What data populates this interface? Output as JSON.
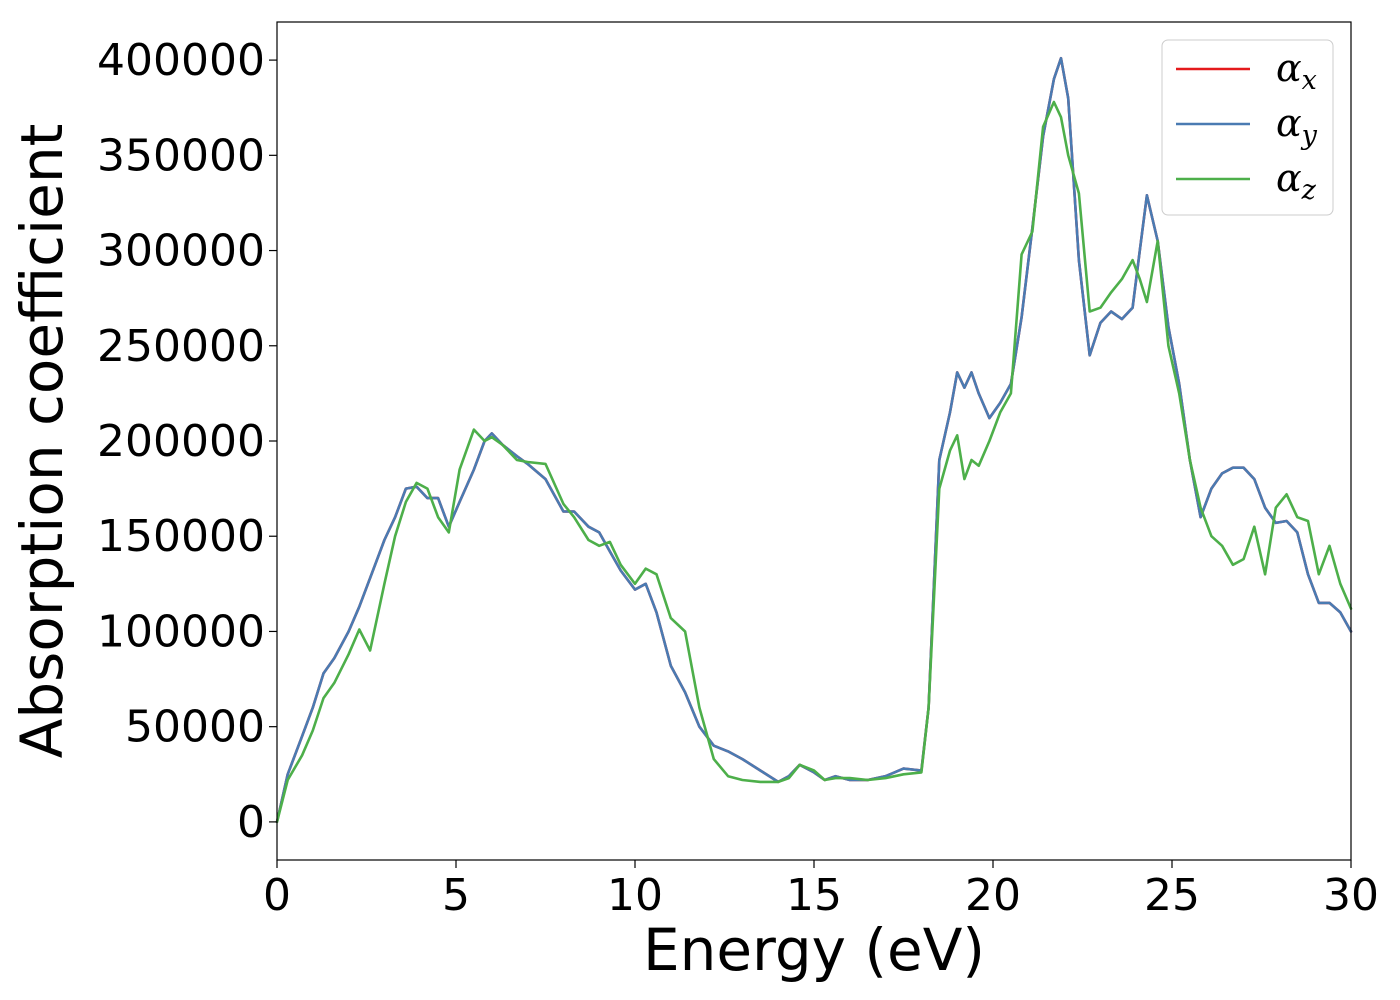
{
  "chart_data": {
    "type": "line",
    "title": "",
    "xlabel": "Energy (eV)",
    "ylabel": "Absorption coefficient",
    "xlim": [
      0,
      30
    ],
    "ylim": [
      -20000,
      420000
    ],
    "x_ticks": [
      0,
      5,
      10,
      15,
      20,
      25,
      30
    ],
    "x_tick_labels": [
      "0",
      "5",
      "10",
      "15",
      "20",
      "25",
      "30"
    ],
    "y_ticks": [
      0,
      50000,
      100000,
      150000,
      200000,
      250000,
      300000,
      350000,
      400000
    ],
    "y_tick_labels": [
      "0",
      "50000",
      "100000",
      "150000",
      "200000",
      "250000",
      "300000",
      "350000",
      "400000"
    ],
    "grid": false,
    "legend_position": "top-right",
    "series": [
      {
        "name": "αx",
        "legend_base": "α",
        "legend_sub": "x",
        "color": "#e41a1c",
        "x": [
          0,
          0.3,
          0.7,
          1.0,
          1.3,
          1.6,
          2.0,
          2.3,
          2.6,
          3.0,
          3.3,
          3.6,
          3.9,
          4.2,
          4.5,
          4.8,
          5.1,
          5.5,
          5.8,
          6.0,
          6.3,
          6.7,
          7.0,
          7.5,
          8.0,
          8.3,
          8.7,
          9.0,
          9.3,
          9.6,
          10.0,
          10.3,
          10.6,
          11.0,
          11.4,
          11.8,
          12.2,
          12.6,
          13.0,
          13.5,
          14.0,
          14.3,
          14.6,
          15.0,
          15.3,
          15.6,
          16.0,
          16.5,
          17.0,
          17.5,
          18.0,
          18.2,
          18.5,
          18.8,
          19.0,
          19.2,
          19.4,
          19.6,
          19.9,
          20.2,
          20.5,
          20.8,
          21.1,
          21.4,
          21.7,
          21.9,
          22.1,
          22.4,
          22.7,
          23.0,
          23.3,
          23.6,
          23.9,
          24.1,
          24.3,
          24.6,
          24.9,
          25.2,
          25.5,
          25.8,
          26.1,
          26.4,
          26.7,
          27.0,
          27.3,
          27.6,
          27.9,
          28.2,
          28.5,
          28.8,
          29.1,
          29.4,
          29.7,
          30.0
        ],
        "y": [
          0,
          25000,
          45000,
          60000,
          78000,
          86000,
          100000,
          113000,
          128000,
          148000,
          160000,
          175000,
          176000,
          170000,
          170000,
          155000,
          168000,
          185000,
          200000,
          204000,
          198000,
          192000,
          188000,
          180000,
          163000,
          163000,
          155000,
          152000,
          142000,
          132000,
          122000,
          125000,
          110000,
          82000,
          68000,
          50000,
          40000,
          37000,
          33000,
          27000,
          21000,
          24000,
          30000,
          26000,
          22000,
          24000,
          22000,
          22000,
          24000,
          28000,
          27000,
          60000,
          190000,
          215000,
          236000,
          228000,
          236000,
          225000,
          212000,
          220000,
          230000,
          265000,
          312000,
          360000,
          390000,
          401000,
          380000,
          295000,
          245000,
          262000,
          268000,
          264000,
          270000,
          300000,
          329000,
          305000,
          260000,
          230000,
          190000,
          160000,
          175000,
          183000,
          186000,
          186000,
          180000,
          165000,
          157000,
          158000,
          152000,
          130000,
          115000,
          115000,
          110000,
          100000
        ]
      },
      {
        "name": "αy",
        "legend_base": "α",
        "legend_sub": "y",
        "color": "#4a7bb2",
        "x": [
          0,
          0.3,
          0.7,
          1.0,
          1.3,
          1.6,
          2.0,
          2.3,
          2.6,
          3.0,
          3.3,
          3.6,
          3.9,
          4.2,
          4.5,
          4.8,
          5.1,
          5.5,
          5.8,
          6.0,
          6.3,
          6.7,
          7.0,
          7.5,
          8.0,
          8.3,
          8.7,
          9.0,
          9.3,
          9.6,
          10.0,
          10.3,
          10.6,
          11.0,
          11.4,
          11.8,
          12.2,
          12.6,
          13.0,
          13.5,
          14.0,
          14.3,
          14.6,
          15.0,
          15.3,
          15.6,
          16.0,
          16.5,
          17.0,
          17.5,
          18.0,
          18.2,
          18.5,
          18.8,
          19.0,
          19.2,
          19.4,
          19.6,
          19.9,
          20.2,
          20.5,
          20.8,
          21.1,
          21.4,
          21.7,
          21.9,
          22.1,
          22.4,
          22.7,
          23.0,
          23.3,
          23.6,
          23.9,
          24.1,
          24.3,
          24.6,
          24.9,
          25.2,
          25.5,
          25.8,
          26.1,
          26.4,
          26.7,
          27.0,
          27.3,
          27.6,
          27.9,
          28.2,
          28.5,
          28.8,
          29.1,
          29.4,
          29.7,
          30.0
        ],
        "y": [
          0,
          25000,
          45000,
          60000,
          78000,
          86000,
          100000,
          113000,
          128000,
          148000,
          160000,
          175000,
          176000,
          170000,
          170000,
          155000,
          168000,
          185000,
          200000,
          204000,
          198000,
          192000,
          188000,
          180000,
          163000,
          163000,
          155000,
          152000,
          142000,
          132000,
          122000,
          125000,
          110000,
          82000,
          68000,
          50000,
          40000,
          37000,
          33000,
          27000,
          21000,
          24000,
          30000,
          26000,
          22000,
          24000,
          22000,
          22000,
          24000,
          28000,
          27000,
          60000,
          190000,
          215000,
          236000,
          228000,
          236000,
          225000,
          212000,
          220000,
          230000,
          265000,
          312000,
          360000,
          390000,
          401000,
          380000,
          295000,
          245000,
          262000,
          268000,
          264000,
          270000,
          300000,
          329000,
          305000,
          260000,
          230000,
          190000,
          160000,
          175000,
          183000,
          186000,
          186000,
          180000,
          165000,
          157000,
          158000,
          152000,
          130000,
          115000,
          115000,
          110000,
          100000
        ]
      },
      {
        "name": "αz",
        "legend_base": "α",
        "legend_sub": "z",
        "color": "#4daf4a",
        "x": [
          0,
          0.3,
          0.7,
          1.0,
          1.3,
          1.6,
          2.0,
          2.3,
          2.6,
          3.0,
          3.3,
          3.6,
          3.9,
          4.2,
          4.5,
          4.8,
          5.1,
          5.5,
          5.8,
          6.0,
          6.3,
          6.7,
          7.0,
          7.5,
          8.0,
          8.3,
          8.7,
          9.0,
          9.3,
          9.6,
          10.0,
          10.3,
          10.6,
          11.0,
          11.4,
          11.8,
          12.2,
          12.6,
          13.0,
          13.5,
          14.0,
          14.3,
          14.6,
          15.0,
          15.3,
          15.6,
          16.0,
          16.5,
          17.0,
          17.5,
          18.0,
          18.2,
          18.5,
          18.8,
          19.0,
          19.2,
          19.4,
          19.6,
          19.9,
          20.2,
          20.5,
          20.8,
          21.1,
          21.4,
          21.7,
          21.9,
          22.1,
          22.4,
          22.7,
          23.0,
          23.3,
          23.6,
          23.9,
          24.1,
          24.3,
          24.6,
          24.9,
          25.2,
          25.5,
          25.8,
          26.1,
          26.4,
          26.7,
          27.0,
          27.3,
          27.6,
          27.9,
          28.2,
          28.5,
          28.8,
          29.1,
          29.4,
          29.7,
          30.0
        ],
        "y": [
          0,
          22000,
          35000,
          48000,
          65000,
          73000,
          88000,
          101000,
          90000,
          125000,
          150000,
          168000,
          178000,
          175000,
          160000,
          152000,
          185000,
          206000,
          200000,
          202000,
          198000,
          190000,
          189000,
          188000,
          167000,
          160000,
          148000,
          145000,
          147000,
          135000,
          125000,
          133000,
          130000,
          107000,
          100000,
          60000,
          33000,
          24000,
          22000,
          21000,
          21000,
          23000,
          30000,
          27000,
          22000,
          23000,
          23000,
          22000,
          23000,
          25000,
          26000,
          60000,
          175000,
          195000,
          203000,
          180000,
          190000,
          187000,
          200000,
          215000,
          225000,
          298000,
          310000,
          365000,
          378000,
          370000,
          350000,
          330000,
          268000,
          270000,
          278000,
          285000,
          295000,
          285000,
          273000,
          305000,
          250000,
          225000,
          190000,
          165000,
          150000,
          145000,
          135000,
          138000,
          155000,
          130000,
          165000,
          172000,
          160000,
          158000,
          130000,
          145000,
          125000,
          112000
        ]
      }
    ]
  }
}
